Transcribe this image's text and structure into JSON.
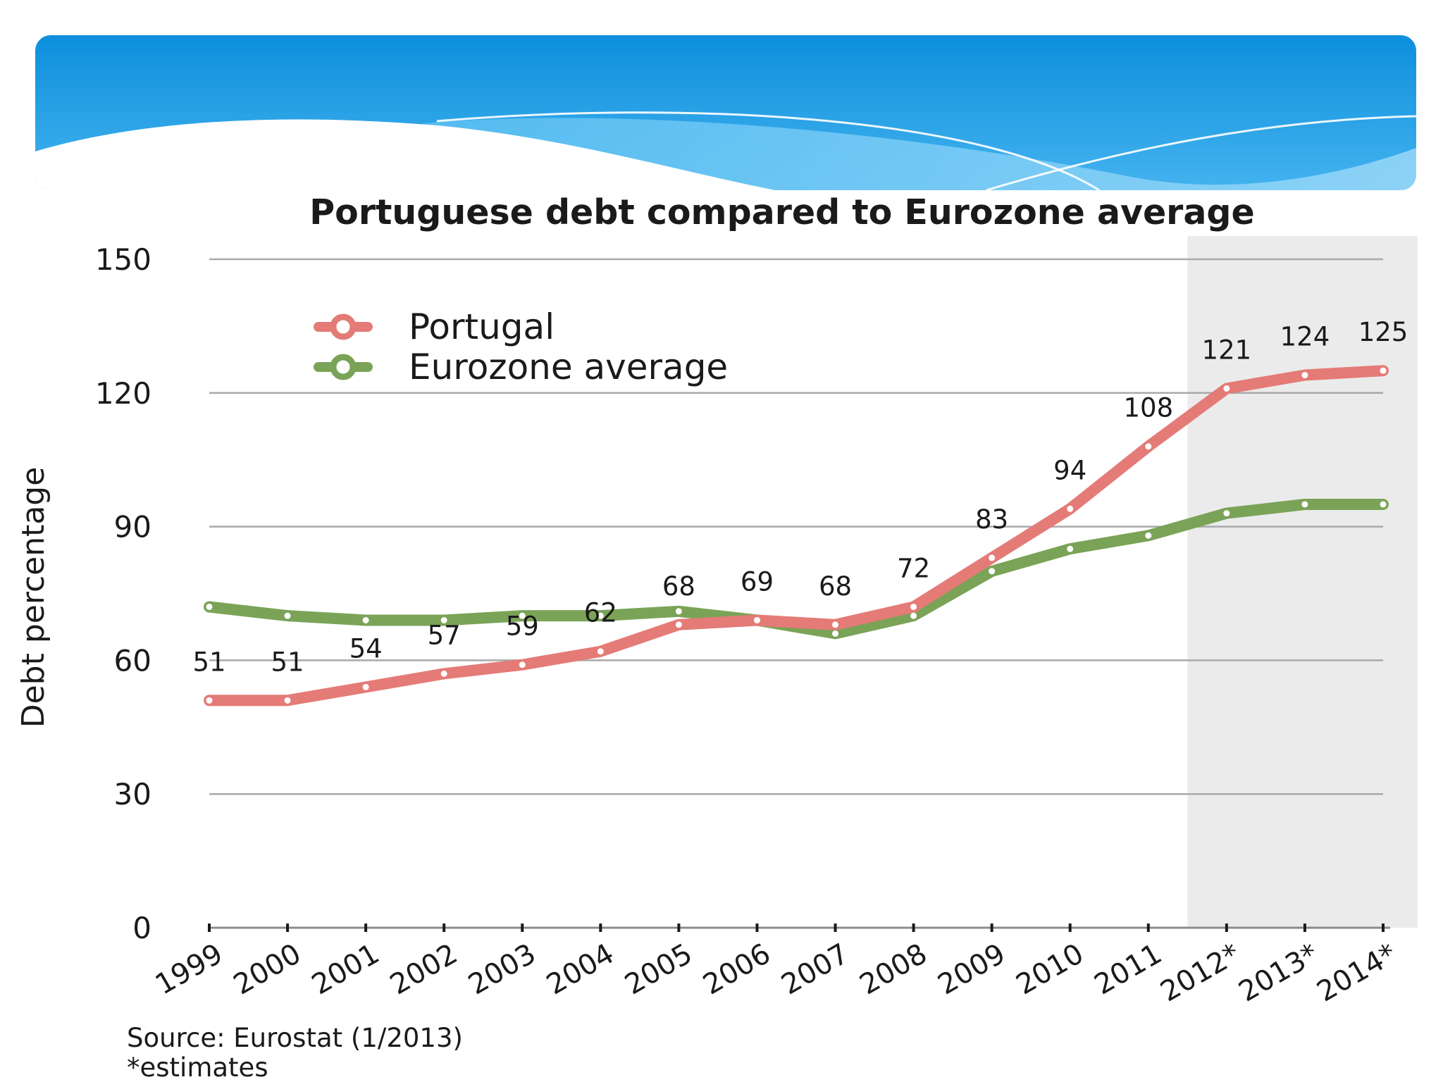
{
  "chart_data": {
    "type": "line",
    "title": "Portuguese debt compared to Eurozone average",
    "ylabel": "Debt percentage",
    "xlabel": "",
    "ylim": [
      0,
      150
    ],
    "yticks": [
      "0",
      "30",
      "60",
      "90",
      "120",
      "150"
    ],
    "x": [
      "1999",
      "2000",
      "2001",
      "2002",
      "2003",
      "2004",
      "2005",
      "2006",
      "2007",
      "2008",
      "2009",
      "2010",
      "2011",
      "2012*",
      "2013*",
      "2014*"
    ],
    "shaded_from": "2012*",
    "series": [
      {
        "name": "Portugal",
        "color": "#e47b77",
        "values": [
          51,
          51,
          54,
          57,
          59,
          62,
          68,
          69,
          68,
          72,
          83,
          94,
          108,
          121,
          124,
          125
        ],
        "labels": [
          "51",
          "51",
          "54",
          "57",
          "59",
          "62",
          "68",
          "69",
          "68",
          "72",
          "83",
          "94",
          "108",
          "121",
          "124",
          "125"
        ]
      },
      {
        "name": "Eurozone average",
        "color": "#7aa357",
        "values": [
          72,
          70,
          69,
          69,
          70,
          70,
          71,
          69,
          66,
          70,
          80,
          85,
          88,
          93,
          95,
          95
        ]
      }
    ],
    "grid": true,
    "legend": "top-left",
    "source": "Source: Eurostat (1/2013)",
    "footnote": "*estimates"
  }
}
